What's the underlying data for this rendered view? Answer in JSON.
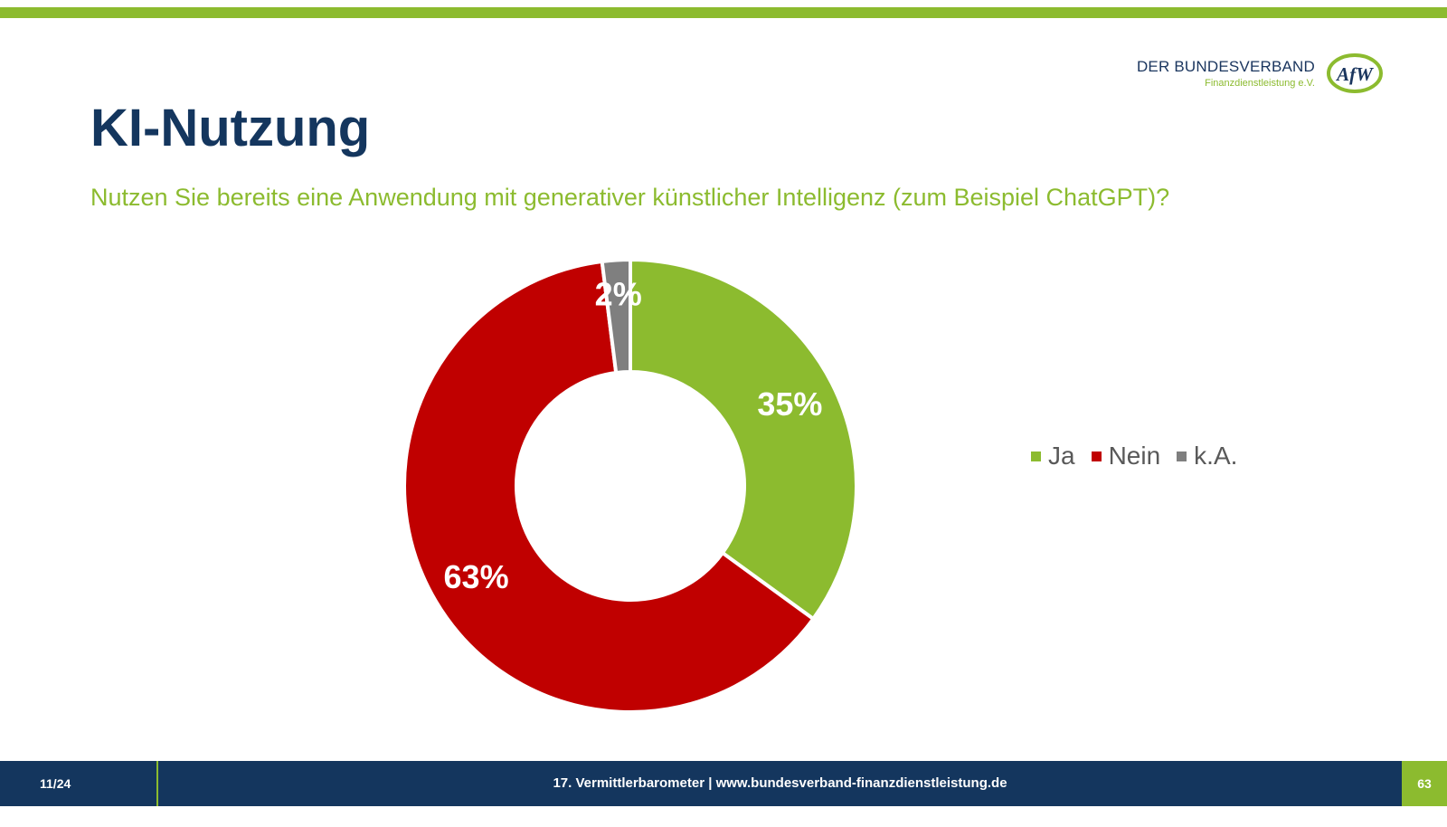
{
  "header": {
    "logo_line1": "DER BUNDESVERBAND",
    "logo_line2": "Finanzdienstleistung e.V.",
    "logo_mark": "AfW"
  },
  "slide": {
    "title": "KI-Nutzung",
    "question": "Nutzen Sie bereits eine Anwendung mit generativer künstlicher Intelligenz (zum Beispiel ChatGPT)?"
  },
  "chart_data": {
    "type": "pie",
    "variant": "donut",
    "title": "",
    "categories": [
      "Ja",
      "Nein",
      "k.A."
    ],
    "values": [
      35,
      63,
      2
    ],
    "labels": [
      "35%",
      "63%",
      "2%"
    ],
    "colors": [
      "#8cbb2f",
      "#c00000",
      "#7f7f7f"
    ],
    "legend_position": "right"
  },
  "footer": {
    "page_indicator": "11/24",
    "center_text": "17. Vermittlerbarometer | www.bundesverband-finanzdienstleistung.de",
    "slide_number": "63"
  }
}
